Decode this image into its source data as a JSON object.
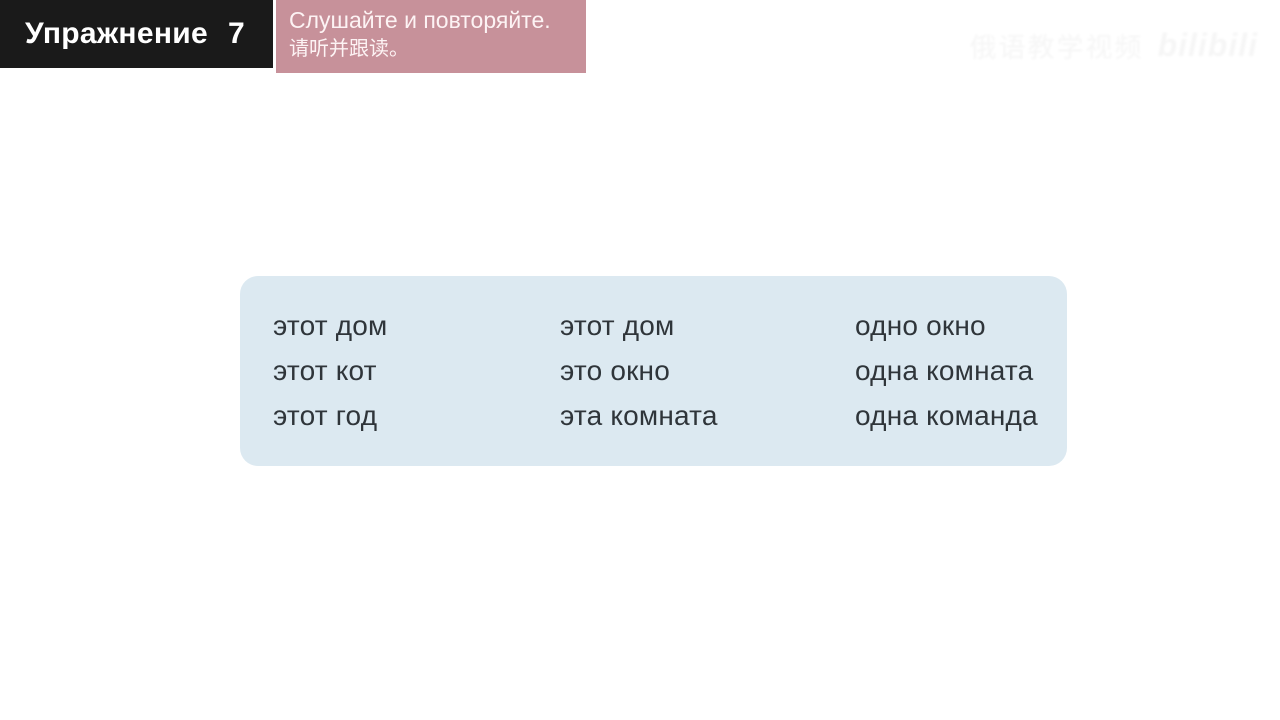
{
  "header": {
    "exercise_label": "Упражнение",
    "exercise_number": "7",
    "instruction_ru": "Слушайте и повторяйте.",
    "instruction_zh": "请听并跟读。"
  },
  "watermark": {
    "cjk_text": "俄语教学视频",
    "logo_text": "bilibili"
  },
  "vocab_card": {
    "columns": [
      {
        "items": [
          "этот дом",
          "этот кот",
          "этот год"
        ]
      },
      {
        "items": [
          "этот дом",
          "это окно",
          "эта комната"
        ]
      },
      {
        "items": [
          "одно окно",
          "одна комната",
          "одна команда"
        ]
      }
    ]
  },
  "colors": {
    "header_bar": "#1a1a1a",
    "instruction_box": "#c7919a",
    "card_background": "#dce9f1",
    "card_text": "#2f353a",
    "header_text": "#ffffff"
  }
}
